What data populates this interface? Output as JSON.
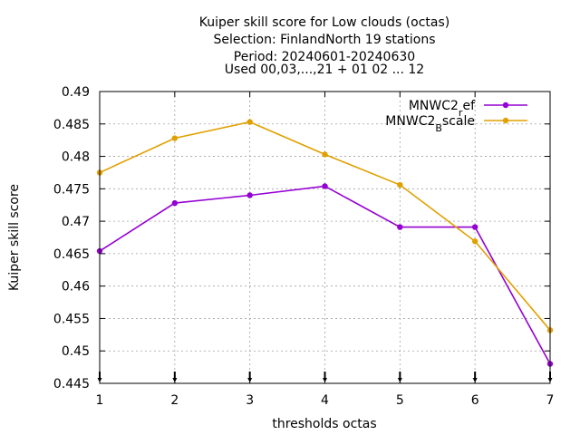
{
  "chart_data": {
    "type": "line",
    "title_lines": [
      "Kuiper skill score  for Low clouds (octas)",
      "Selection: FinlandNorth     19 stations",
      "Period: 20240601-20240630",
      "Used 00,03,...,21 + 01 02 ... 12"
    ],
    "xlabel": "thresholds octas",
    "ylabel": "Kuiper skill score",
    "x": [
      1,
      2,
      3,
      4,
      5,
      6,
      7
    ],
    "xlim": [
      1,
      7
    ],
    "ylim": [
      0.445,
      0.49
    ],
    "yticks": [
      "0.445",
      "0.45",
      "0.455",
      "0.46",
      "0.465",
      "0.47",
      "0.475",
      "0.48",
      "0.485",
      "0.49"
    ],
    "xticks": [
      "1",
      "2",
      "3",
      "4",
      "5",
      "6",
      "7"
    ],
    "grid": true,
    "legend_position": "top-right",
    "series": [
      {
        "name_base": "MNWC2",
        "name_sub": "r",
        "name_rest": "ef",
        "color": "#9400d3",
        "values": [
          0.4654,
          0.4728,
          0.474,
          0.4754,
          0.4691,
          0.4691,
          0.448
        ]
      },
      {
        "name_base": "MNWC2",
        "name_sub": "B",
        "name_rest": "scale",
        "color": "#e0a000",
        "values": [
          0.4775,
          0.4828,
          0.4853,
          0.4803,
          0.4756,
          0.4669,
          0.4532
        ]
      }
    ]
  }
}
